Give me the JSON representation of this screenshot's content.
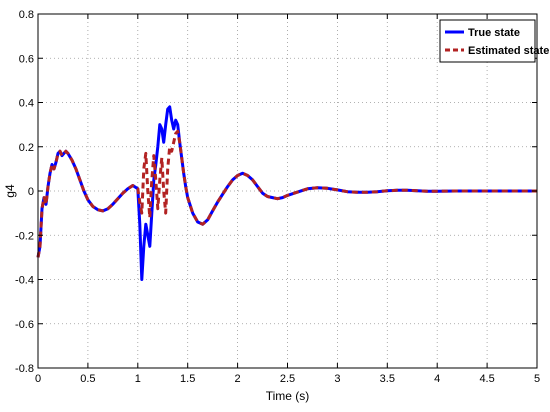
{
  "chart_data": {
    "type": "line",
    "title": "",
    "xlabel": "Time (s)",
    "ylabel": "g4",
    "xlim": [
      0,
      5
    ],
    "ylim": [
      -0.8,
      0.8
    ],
    "xticks": [
      0,
      0.5,
      1,
      1.5,
      2,
      2.5,
      3,
      3.5,
      4,
      4.5,
      5
    ],
    "xtick_labels": [
      "0",
      "0.5",
      "1",
      "1.5",
      "2",
      "2.5",
      "3",
      "3.5",
      "4",
      "4.5",
      "5"
    ],
    "yticks": [
      -0.8,
      -0.6,
      -0.4,
      -0.2,
      0,
      0.2,
      0.4,
      0.6,
      0.8
    ],
    "ytick_labels": [
      "-0.8",
      "-0.6",
      "-0.4",
      "-0.2",
      "0",
      "0.2",
      "0.4",
      "0.6",
      "0.8"
    ],
    "grid": true,
    "legend_position": "top-right",
    "series": [
      {
        "name": "True state",
        "color": "#0000ff",
        "style": "solid",
        "x": [
          0,
          0.02,
          0.04,
          0.06,
          0.08,
          0.1,
          0.12,
          0.14,
          0.16,
          0.18,
          0.2,
          0.22,
          0.24,
          0.26,
          0.28,
          0.3,
          0.34,
          0.38,
          0.42,
          0.46,
          0.5,
          0.55,
          0.6,
          0.65,
          0.7,
          0.75,
          0.8,
          0.85,
          0.9,
          0.95,
          1.0,
          1.02,
          1.04,
          1.06,
          1.08,
          1.1,
          1.12,
          1.14,
          1.16,
          1.18,
          1.2,
          1.22,
          1.24,
          1.26,
          1.28,
          1.3,
          1.32,
          1.34,
          1.36,
          1.38,
          1.4,
          1.42,
          1.44,
          1.46,
          1.48,
          1.5,
          1.55,
          1.6,
          1.65,
          1.7,
          1.75,
          1.8,
          1.85,
          1.9,
          1.95,
          2.0,
          2.05,
          2.1,
          2.15,
          2.2,
          2.25,
          2.3,
          2.35,
          2.4,
          2.45,
          2.5,
          2.6,
          2.7,
          2.8,
          2.9,
          3.0,
          3.1,
          3.2,
          3.3,
          3.4,
          3.5,
          3.6,
          3.7,
          3.8,
          3.9,
          4.0,
          4.2,
          4.4,
          4.6,
          4.8,
          5.0
        ],
        "y": [
          -0.3,
          -0.25,
          -0.08,
          -0.03,
          -0.06,
          0.02,
          0.08,
          0.12,
          0.1,
          0.13,
          0.17,
          0.18,
          0.16,
          0.17,
          0.18,
          0.17,
          0.14,
          0.1,
          0.05,
          0.0,
          -0.04,
          -0.07,
          -0.085,
          -0.09,
          -0.08,
          -0.06,
          -0.035,
          -0.01,
          0.01,
          0.025,
          0.01,
          -0.15,
          -0.4,
          -0.25,
          -0.15,
          -0.2,
          -0.25,
          -0.1,
          0.05,
          0.12,
          0.2,
          0.3,
          0.28,
          0.22,
          0.3,
          0.37,
          0.38,
          0.32,
          0.28,
          0.32,
          0.3,
          0.22,
          0.15,
          0.08,
          0.02,
          -0.03,
          -0.1,
          -0.14,
          -0.15,
          -0.13,
          -0.09,
          -0.05,
          -0.015,
          0.02,
          0.05,
          0.07,
          0.08,
          0.07,
          0.05,
          0.02,
          -0.01,
          -0.025,
          -0.03,
          -0.035,
          -0.03,
          -0.02,
          -0.005,
          0.01,
          0.015,
          0.012,
          0.005,
          -0.003,
          -0.006,
          -0.006,
          -0.003,
          0.001,
          0.003,
          0.003,
          0.001,
          -0.001,
          -0.001,
          0.0,
          0.0,
          0.0,
          0.0,
          0.0
        ]
      },
      {
        "name": "Estimated state",
        "color": "#b22222",
        "style": "dashed",
        "x": [
          0,
          0.02,
          0.04,
          0.06,
          0.08,
          0.1,
          0.12,
          0.14,
          0.16,
          0.18,
          0.2,
          0.22,
          0.24,
          0.26,
          0.28,
          0.3,
          0.34,
          0.38,
          0.42,
          0.46,
          0.5,
          0.55,
          0.6,
          0.65,
          0.7,
          0.75,
          0.8,
          0.85,
          0.9,
          0.95,
          1.0,
          1.02,
          1.04,
          1.06,
          1.08,
          1.1,
          1.12,
          1.14,
          1.16,
          1.18,
          1.2,
          1.22,
          1.24,
          1.26,
          1.28,
          1.3,
          1.32,
          1.34,
          1.36,
          1.38,
          1.4,
          1.42,
          1.44,
          1.46,
          1.48,
          1.5,
          1.55,
          1.6,
          1.65,
          1.7,
          1.75,
          1.8,
          1.85,
          1.9,
          1.95,
          2.0,
          2.05,
          2.1,
          2.15,
          2.2,
          2.25,
          2.3,
          2.35,
          2.4,
          2.45,
          2.5,
          2.6,
          2.7,
          2.8,
          2.9,
          3.0,
          3.1,
          3.2,
          3.3,
          3.4,
          3.5,
          3.6,
          3.7,
          3.8,
          3.9,
          4.0,
          4.2,
          4.4,
          4.6,
          4.8,
          5.0
        ],
        "y": [
          -0.3,
          -0.25,
          -0.08,
          -0.03,
          -0.06,
          0.02,
          0.08,
          0.12,
          0.1,
          0.13,
          0.17,
          0.18,
          0.16,
          0.17,
          0.18,
          0.17,
          0.14,
          0.1,
          0.05,
          0.0,
          -0.04,
          -0.07,
          -0.085,
          -0.09,
          -0.08,
          -0.06,
          -0.035,
          -0.01,
          0.01,
          0.025,
          0.01,
          -0.05,
          -0.1,
          0.1,
          0.17,
          0.0,
          -0.12,
          0.05,
          0.16,
          0.05,
          -0.08,
          0.05,
          0.15,
          0.0,
          -0.1,
          0.1,
          0.2,
          0.18,
          0.22,
          0.26,
          0.27,
          0.22,
          0.15,
          0.08,
          0.02,
          -0.03,
          -0.1,
          -0.14,
          -0.15,
          -0.13,
          -0.09,
          -0.05,
          -0.015,
          0.02,
          0.05,
          0.07,
          0.08,
          0.07,
          0.05,
          0.02,
          -0.01,
          -0.025,
          -0.03,
          -0.035,
          -0.03,
          -0.02,
          -0.005,
          0.01,
          0.015,
          0.012,
          0.005,
          -0.003,
          -0.006,
          -0.006,
          -0.003,
          0.001,
          0.003,
          0.003,
          0.001,
          -0.001,
          -0.001,
          0.0,
          0.0,
          0.0,
          0.0,
          0.0
        ]
      }
    ]
  }
}
